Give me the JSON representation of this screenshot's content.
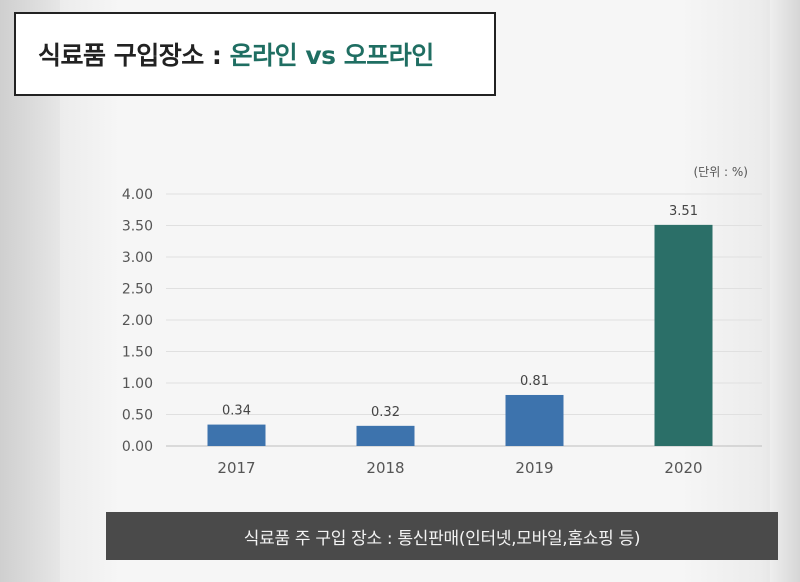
{
  "title": {
    "prefix": "식료품 구입장소 : ",
    "accent": "온라인 vs 오프라인"
  },
  "chart_data": {
    "type": "bar",
    "categories": [
      "2017",
      "2018",
      "2019",
      "2020"
    ],
    "values": [
      0.34,
      0.32,
      0.81,
      3.51
    ],
    "data_labels": [
      "0.34",
      "0.32",
      "0.81",
      "3.51"
    ],
    "ylim": [
      0,
      4
    ],
    "yticks": [
      "0.00",
      "0.50",
      "1.00",
      "1.50",
      "2.00",
      "2.50",
      "3.00",
      "3.50",
      "4.00"
    ],
    "unit_note": "(단위 : %)",
    "grid": true,
    "colors": {
      "default": "#3d73ad",
      "highlight": "#2b6f68"
    },
    "highlight_index": 3
  },
  "caption": "식료품 주 구입 장소 : 통신판매(인터넷,모바일,홈쇼핑 등)"
}
